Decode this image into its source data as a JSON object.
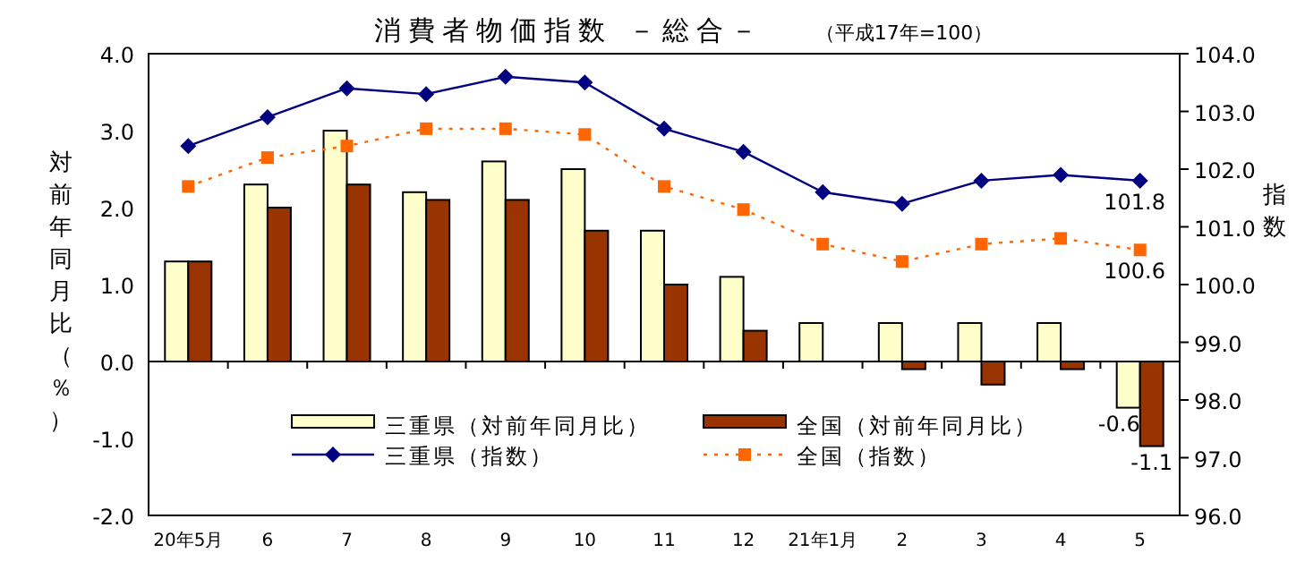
{
  "chart_data": {
    "type": "bar",
    "title": "消費者物価指数 －総合－",
    "subtitle": "（平成17年=100）",
    "ylabel": "対前年同月比（％）",
    "y2label": "指数",
    "categories": [
      "20年5月",
      "6",
      "7",
      "8",
      "9",
      "10",
      "11",
      "12",
      "21年1月",
      "2",
      "3",
      "4",
      "5"
    ],
    "series": [
      {
        "name": "三重県（対前年同月比）",
        "color": "#ffffcc",
        "values": [
          1.3,
          2.3,
          3.0,
          2.2,
          2.6,
          2.5,
          1.7,
          1.1,
          0.5,
          0.5,
          0.5,
          0.5,
          -0.6
        ],
        "value_labels": [
          null,
          null,
          null,
          null,
          null,
          null,
          null,
          null,
          null,
          null,
          null,
          null,
          "-0.6"
        ]
      },
      {
        "name": "全国（対前年同月比）",
        "color": "#993300",
        "values": [
          1.3,
          2.0,
          2.3,
          2.1,
          2.1,
          1.7,
          1.0,
          0.4,
          0.0,
          -0.1,
          -0.3,
          -0.1,
          -1.1
        ],
        "value_labels": [
          null,
          null,
          null,
          null,
          null,
          null,
          null,
          null,
          null,
          null,
          null,
          null,
          "-1.1"
        ]
      },
      {
        "name": "三重県（指数）",
        "type": "line",
        "axis": "y2",
        "color": "#000080",
        "marker": "diamond",
        "line_style": "solid",
        "values": [
          102.4,
          102.9,
          103.4,
          103.3,
          103.6,
          103.5,
          102.7,
          102.3,
          101.6,
          101.4,
          101.8,
          101.9,
          101.8
        ],
        "value_labels": [
          null,
          null,
          null,
          null,
          null,
          null,
          null,
          null,
          null,
          null,
          null,
          null,
          "101.8"
        ]
      },
      {
        "name": "全国（指数）",
        "type": "line",
        "axis": "y2",
        "color": "#ff6600",
        "marker": "square",
        "line_style": "dotted",
        "values": [
          101.7,
          102.2,
          102.4,
          102.7,
          102.7,
          102.6,
          101.7,
          101.3,
          100.7,
          100.4,
          100.7,
          100.8,
          100.6
        ],
        "value_labels": [
          null,
          null,
          null,
          null,
          null,
          null,
          null,
          null,
          null,
          null,
          null,
          null,
          "100.6"
        ]
      }
    ],
    "ylim": [
      -2,
      4
    ],
    "yticks": [
      {
        "value": -2,
        "label": "-2.0"
      },
      {
        "value": -1,
        "label": "-1.0"
      },
      {
        "value": 0,
        "label": "0.0"
      },
      {
        "value": 1,
        "label": "1.0"
      },
      {
        "value": 2,
        "label": "2.0"
      },
      {
        "value": 3,
        "label": "3.0"
      },
      {
        "value": 4,
        "label": "4.0"
      }
    ],
    "y2lim": [
      96,
      104
    ],
    "y2ticks": [
      {
        "value": 96,
        "label": "96.0"
      },
      {
        "value": 97,
        "label": "97.0"
      },
      {
        "value": 98,
        "label": "98.0"
      },
      {
        "value": 99,
        "label": "99.0"
      },
      {
        "value": 100,
        "label": "100.0"
      },
      {
        "value": 101,
        "label": "101.0"
      },
      {
        "value": 102,
        "label": "102.0"
      },
      {
        "value": 103,
        "label": "103.0"
      },
      {
        "value": 104,
        "label": "104.0"
      }
    ],
    "legend": "bottom"
  }
}
